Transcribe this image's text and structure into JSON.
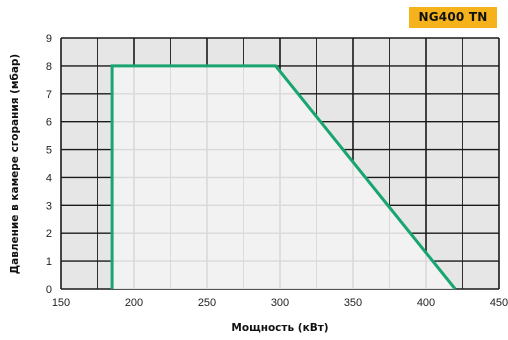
{
  "model_badge": "NG400 TN",
  "colors": {
    "grid_fill": "#e6e6e6",
    "grid_line": "#1a1a1a",
    "region_fill": "#f4f4f4",
    "region_stroke": "#19a570",
    "badge_bg": "#f6b21b"
  },
  "chart_data": {
    "type": "area",
    "xlabel": "Мощность (кВт)",
    "ylabel": "Давление в камере сгорания (мбар)",
    "xlim": [
      150,
      450
    ],
    "ylim": [
      0,
      9
    ],
    "x_ticks": [
      150,
      200,
      250,
      300,
      350,
      400,
      450
    ],
    "x_tick_labels": [
      "150",
      "200",
      "250",
      "300",
      "350",
      "400",
      "450"
    ],
    "y_ticks": [
      0,
      1,
      2,
      3,
      4,
      5,
      6,
      7,
      8,
      9
    ],
    "y_tick_labels": [
      "0",
      "1",
      "2",
      "3",
      "4",
      "5",
      "6",
      "7",
      "8",
      "9"
    ],
    "grid": true,
    "x_grid_step": 25,
    "y_grid_step": 1,
    "series": [
      {
        "x": [
          185,
          185,
          297,
          420
        ],
        "y": [
          0,
          8,
          8,
          0
        ]
      }
    ]
  }
}
